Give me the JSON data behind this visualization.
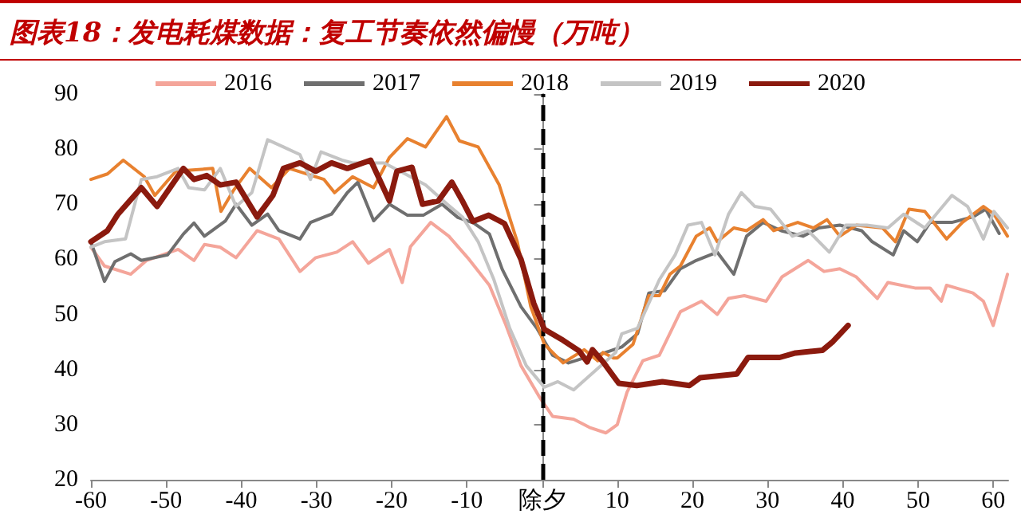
{
  "chart_data": {
    "type": "line",
    "title": "图表18：发电耗煤数据：复工节奏依然偏慢（万吨）",
    "xlim": [
      -60,
      62
    ],
    "xticks": [
      -60,
      -50,
      -40,
      -30,
      -20,
      -10,
      {
        "value": 0,
        "label": "除夕"
      },
      10,
      20,
      30,
      40,
      50,
      60
    ],
    "ylim": [
      20,
      90
    ],
    "yticks": [
      20,
      30,
      40,
      50,
      60,
      70,
      80,
      90
    ],
    "grid": false,
    "legend": "top",
    "marker": "none",
    "line_style": "solid",
    "ref_lines": [
      {
        "axis": "x",
        "value": 0,
        "color": "#000000",
        "line_style": "dashed"
      }
    ],
    "series": [
      {
        "name": "2016",
        "color": "#f4a59a",
        "x": [
          -60,
          -58.2,
          -54.7,
          -52.6,
          -50.5,
          -48.4,
          -46.3,
          -44.9,
          -42.8,
          -40.7,
          -37.9,
          -35,
          -32.2,
          -30.1,
          -27.3,
          -25.2,
          -23.1,
          -20.3,
          -18.6,
          -17.5,
          -14.8,
          -12.4,
          -9.9,
          -7,
          -4.9,
          -2.8,
          -0.3,
          1.4,
          4.2,
          6.3,
          8.5,
          10,
          11.3,
          13.4,
          15.6,
          18.4,
          21.2,
          23.3,
          24.8,
          26.9,
          29.8,
          31.9,
          35.4,
          37.5,
          39.6,
          41.8,
          44.6,
          46,
          49.6,
          51.6,
          53.1,
          53.8,
          57.3,
          58.7,
          60,
          61.9
        ],
        "values": [
          62.2,
          58.8,
          57.3,
          59.8,
          60.8,
          61.8,
          59.8,
          62.7,
          62.2,
          60.3,
          65.2,
          63.7,
          57.8,
          60.3,
          61.3,
          63.2,
          59.3,
          61.8,
          55.8,
          62.3,
          66.7,
          64.2,
          60.3,
          55.3,
          48.4,
          40.7,
          34.9,
          31.5,
          31,
          29.5,
          28.5,
          30,
          35.9,
          41.6,
          42.6,
          50.5,
          52.4,
          50,
          52.9,
          53.4,
          52.4,
          56.8,
          59.8,
          57.8,
          58.3,
          56.8,
          52.9,
          55.8,
          54.8,
          54.8,
          52.4,
          55.3,
          53.9,
          52.4,
          48,
          57.3
        ]
      },
      {
        "name": "2017",
        "color": "#6f6f6f",
        "x": [
          -60,
          -58.2,
          -56.8,
          -54.7,
          -53.3,
          -49.8,
          -47.7,
          -46.3,
          -44.9,
          -42.1,
          -40.7,
          -38.6,
          -36.5,
          -35,
          -32.2,
          -30.8,
          -28,
          -25.9,
          -24.5,
          -22.4,
          -20.3,
          -17.9,
          -15.8,
          -13.3,
          -11.2,
          -9.1,
          -7,
          -5.3,
          -2.8,
          -0.7,
          1.4,
          3.5,
          5.6,
          7.4,
          9.5,
          10.6,
          12.7,
          14.2,
          16.3,
          18.4,
          20.5,
          23.3,
          25.5,
          27.2,
          29.4,
          31.8,
          34.7,
          36.8,
          39.6,
          42.5,
          43.9,
          46.7,
          48.1,
          49.9,
          51.6,
          54.5,
          57.3,
          59,
          60.8
        ],
        "values": [
          63.2,
          56,
          59.6,
          61,
          59.8,
          60.8,
          64.6,
          66.6,
          64.2,
          67,
          70,
          66.2,
          68.2,
          65.2,
          63.7,
          66.7,
          68.2,
          72.1,
          74,
          67,
          70,
          68,
          68,
          70,
          67.6,
          66.6,
          64.6,
          58.2,
          51.4,
          47.5,
          42.6,
          41.2,
          42.1,
          42.6,
          43.6,
          44.1,
          46.5,
          53.9,
          54.3,
          58.3,
          59.8,
          61.3,
          57.3,
          64.2,
          66.7,
          65.2,
          64.2,
          65.7,
          66.2,
          65.2,
          63.2,
          60.8,
          65.2,
          63.2,
          66.7,
          66.7,
          67.7,
          69.1,
          64.7
        ]
      },
      {
        "name": "2018",
        "color": "#e8812f",
        "x": [
          -60,
          -57.8,
          -55.7,
          -52.9,
          -51.5,
          -48.7,
          -43.8,
          -42.7,
          -41,
          -38.9,
          -36,
          -33.6,
          -29,
          -27.6,
          -25.2,
          -22.4,
          -20.3,
          -17.9,
          -15.5,
          -12.7,
          -11,
          -8.5,
          -5.7,
          -3.3,
          -1.5,
          0.3,
          2.8,
          5.6,
          7.4,
          8.1,
          9.5,
          10,
          12.1,
          14.2,
          15.6,
          17,
          18.4,
          20.5,
          22.3,
          23.3,
          25.5,
          27.2,
          29.4,
          30.8,
          34,
          36.1,
          37.9,
          39.6,
          41.8,
          45.3,
          47,
          48.8,
          50.9,
          53.8,
          55.9,
          58.7,
          60.1,
          61.9
        ],
        "values": [
          74.5,
          75.5,
          78,
          75,
          71.6,
          76,
          76.5,
          68.7,
          72.6,
          76.5,
          73,
          76.5,
          74.5,
          72.1,
          75,
          73,
          78.5,
          81.9,
          80.4,
          85.9,
          81.5,
          80.4,
          73.5,
          63.2,
          51.4,
          44.6,
          41.2,
          43.6,
          41.6,
          43.1,
          42.1,
          42.1,
          44.6,
          53.4,
          53.4,
          57.3,
          58.8,
          64.2,
          65.7,
          63.2,
          65.7,
          65.2,
          67.2,
          65.2,
          66.7,
          65.7,
          67.2,
          64.2,
          66.2,
          65.7,
          63.2,
          69.1,
          68.7,
          63.7,
          66.7,
          69.6,
          68.2,
          64.2
        ]
      },
      {
        "name": "2019",
        "color": "#c4c4c4",
        "x": [
          -60,
          -58.2,
          -55.4,
          -53.3,
          -51.2,
          -48.4,
          -47,
          -44.9,
          -42.8,
          -40.7,
          -38.6,
          -36.5,
          -34.4,
          -32.2,
          -30.8,
          -29.4,
          -26.6,
          -25.2,
          -21,
          -18.2,
          -15.5,
          -12.7,
          -10.6,
          -8.5,
          -6.4,
          -4.3,
          -2.1,
          0.3,
          2.1,
          4.2,
          7,
          9.8,
          10.6,
          12.7,
          15.6,
          17.7,
          19.4,
          21.2,
          23,
          24.8,
          26.5,
          28.3,
          30.4,
          33.3,
          35.4,
          38.2,
          40.4,
          43.2,
          46,
          48.1,
          50.9,
          54.5,
          56.6,
          58.7,
          60.1,
          61.9
        ],
        "values": [
          62.2,
          63.2,
          63.7,
          74.5,
          75,
          76.5,
          73,
          72.6,
          76.5,
          69.6,
          72.1,
          81.7,
          80.4,
          79,
          74.5,
          79.5,
          78,
          77.5,
          77.5,
          75.5,
          73.5,
          70.1,
          67.7,
          63.2,
          56.3,
          47.5,
          40.7,
          36.8,
          37.8,
          36.3,
          39.7,
          43.1,
          46.5,
          47.5,
          56.3,
          60.8,
          66.2,
          66.7,
          60.8,
          68.2,
          72.1,
          69.6,
          69.1,
          64.2,
          65.2,
          61.3,
          66.2,
          66.2,
          65.7,
          68.2,
          65.7,
          71.6,
          69.6,
          63.7,
          68.7,
          65.7
        ]
      },
      {
        "name": "2020",
        "color": "#8b1a0e",
        "x": [
          -60,
          -57.8,
          -56.4,
          -53.3,
          -51.2,
          -47.7,
          -46.3,
          -44.6,
          -42.8,
          -40.7,
          -37.9,
          -35.8,
          -34.4,
          -32.2,
          -30.1,
          -28,
          -25.9,
          -22.8,
          -20.3,
          -19.3,
          -17.3,
          -15.9,
          -13.8,
          -12,
          -10.6,
          -9.2,
          -7.1,
          -5,
          -2.8,
          -1.1,
          0.3,
          2.8,
          4.9,
          6,
          6.7,
          8.1,
          10.2,
          12.6,
          16,
          19.6,
          21,
          25.9,
          27.4,
          31.6,
          33.7,
          37.3,
          38.7,
          40.7
        ],
        "values": [
          63.2,
          65.2,
          68.2,
          73,
          69.6,
          76.5,
          74.5,
          75.2,
          73.5,
          74,
          67.7,
          71.6,
          76.5,
          77.5,
          76,
          77.5,
          76.5,
          78,
          70.6,
          76,
          76.7,
          70,
          70.6,
          74,
          70.6,
          66.9,
          68,
          66.5,
          60,
          52,
          47.3,
          45.3,
          43.4,
          41.4,
          43.6,
          41.4,
          37.5,
          37.1,
          37.8,
          37.1,
          38.5,
          39.2,
          42.2,
          42.2,
          43,
          43.5,
          45.1,
          48
        ]
      }
    ]
  }
}
